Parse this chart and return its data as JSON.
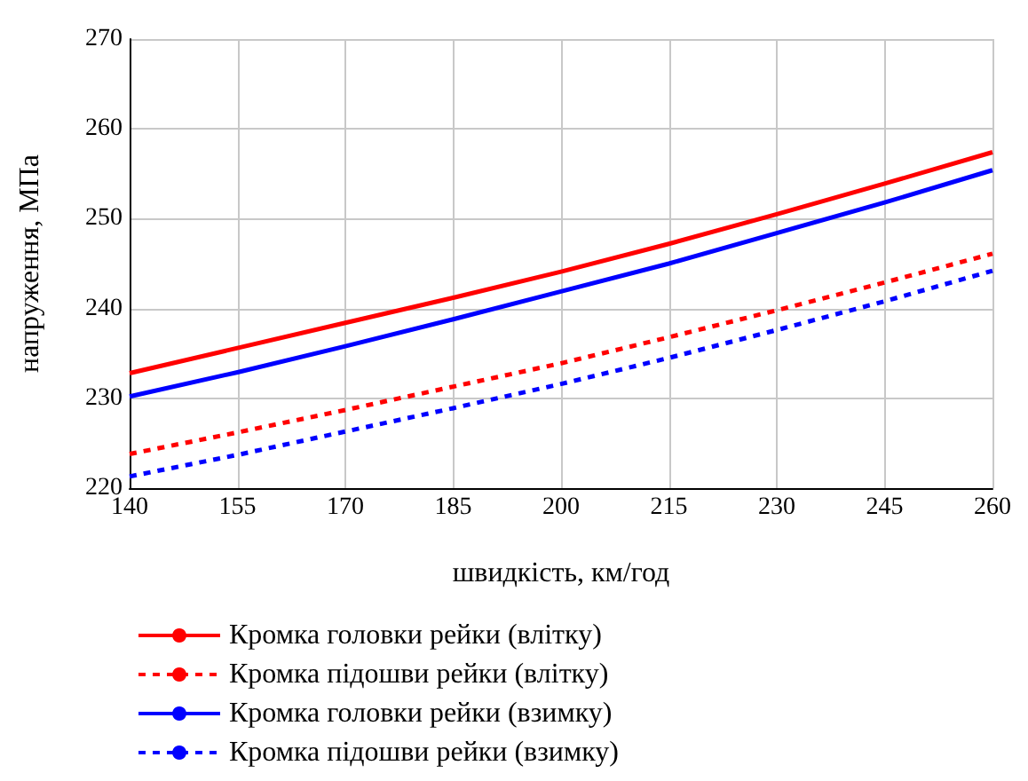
{
  "chart_data": {
    "type": "line",
    "xlabel": "швидкість, км/год",
    "ylabel": "напруження, МПа",
    "x": [
      140,
      155,
      170,
      185,
      200,
      215,
      230,
      245,
      260
    ],
    "xlim": [
      140,
      260
    ],
    "xticks": [
      140,
      155,
      170,
      185,
      200,
      215,
      230,
      245,
      260
    ],
    "ylim": [
      220,
      270
    ],
    "yticks": [
      220,
      230,
      240,
      250,
      260,
      270
    ],
    "grid": true,
    "legend": "bottom",
    "marker": "none",
    "series": [
      {
        "name": "Кромка головки рейки (влітку)",
        "color": "#ff0000",
        "line_style": "solid",
        "values": [
          232.8,
          235.6,
          238.4,
          241.2,
          244.1,
          247.2,
          250.5,
          253.9,
          257.4
        ]
      },
      {
        "name": "Кромка підошви рейки (влітку)",
        "color": "#ff0000",
        "line_style": "dotted",
        "values": [
          223.8,
          226.2,
          228.7,
          231.3,
          233.9,
          236.8,
          239.8,
          242.9,
          246.1
        ]
      },
      {
        "name": "Кромка головки рейки (взимку)",
        "color": "#0000ff",
        "line_style": "solid",
        "values": [
          230.2,
          232.9,
          235.8,
          238.8,
          241.9,
          245.0,
          248.4,
          251.8,
          255.4
        ]
      },
      {
        "name": "Кромка підошви рейки (взимку)",
        "color": "#0000ff",
        "line_style": "dotted",
        "values": [
          221.3,
          223.7,
          226.3,
          228.9,
          231.6,
          234.5,
          237.6,
          240.8,
          244.2
        ]
      }
    ]
  }
}
